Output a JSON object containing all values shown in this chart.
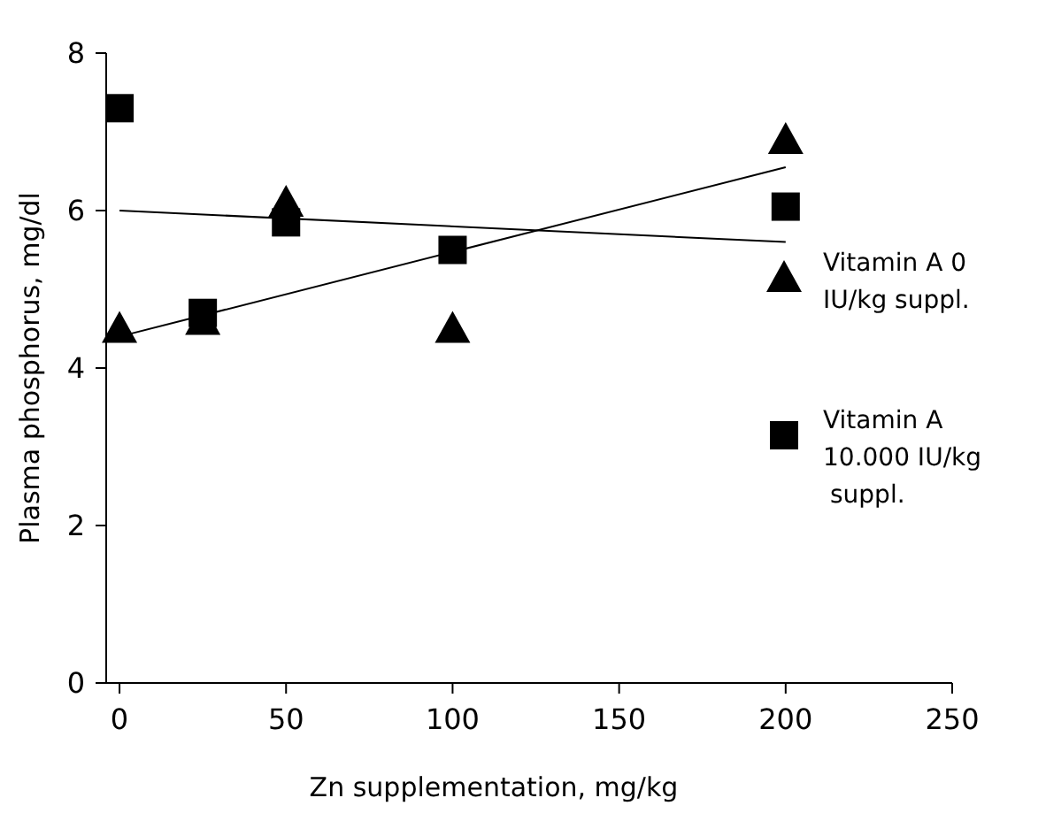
{
  "chart_data": {
    "type": "scatter",
    "xlabel": "Zn supplementation, mg/kg",
    "ylabel": "Plasma phosphorus,  mg/dl",
    "xlim": [
      -4,
      250
    ],
    "ylim": [
      0,
      8
    ],
    "xticks": [
      0,
      50,
      100,
      150,
      200,
      250
    ],
    "yticks": [
      0,
      2,
      4,
      6,
      8
    ],
    "legend": "right",
    "grid": false,
    "series": [
      {
        "name": "Vitamin A  0 IU/kg suppl.",
        "color": "#000000",
        "marker": "triangle",
        "x": [
          0,
          25,
          50,
          100,
          200
        ],
        "values": [
          4.5,
          4.6,
          6.1,
          4.5,
          6.9
        ]
      },
      {
        "name": "Vitamin A 10.000 IU/kg suppl.",
        "color": "#000000",
        "marker": "square",
        "x": [
          0,
          25,
          50,
          100,
          200
        ],
        "values": [
          7.3,
          4.7,
          5.85,
          5.5,
          6.05
        ]
      },
      {
        "type": "line",
        "color": "#000000",
        "marker": "none",
        "x": [
          0,
          200
        ],
        "values": [
          4.4,
          6.55
        ]
      },
      {
        "type": "line",
        "color": "#000000",
        "marker": "none",
        "x": [
          0,
          200
        ],
        "values": [
          6.0,
          5.6
        ]
      }
    ]
  }
}
